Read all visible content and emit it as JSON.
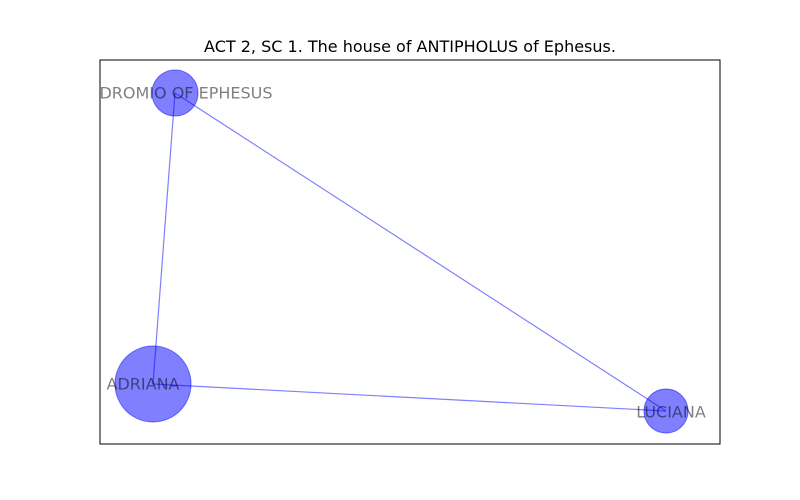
{
  "title": "ACT 2, SC 1. The house of ANTIPHOLUS of Ephesus.",
  "nodes": [
    {
      "id": "dromio",
      "label": "DROMIO OF EPHESUS",
      "color": "#0000ff"
    },
    {
      "id": "adriana",
      "label": "ADRIANA",
      "color": "#0000ff"
    },
    {
      "id": "luciana",
      "label": "LUCIANA",
      "color": "#0000ff"
    }
  ],
  "edges": [
    {
      "source": "dromio",
      "target": "adriana"
    },
    {
      "source": "dromio",
      "target": "luciana"
    },
    {
      "source": "adriana",
      "target": "luciana"
    }
  ],
  "colors": {
    "node": "#0000ff",
    "edge": "#0000ff",
    "label": "#808080"
  }
}
